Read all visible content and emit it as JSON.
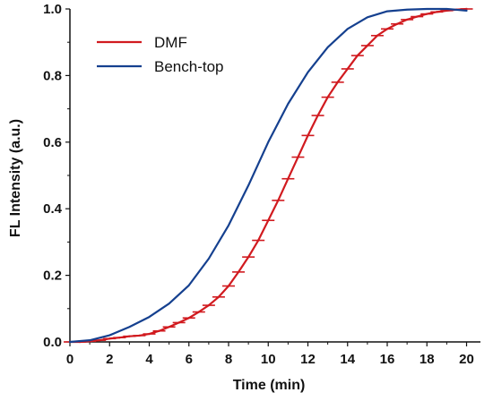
{
  "chart_data": {
    "type": "line",
    "title": "",
    "xlabel": "Time (min)",
    "ylabel": "FL Intensity (a.u.)",
    "xlim": [
      0,
      20.7
    ],
    "ylim": [
      0,
      1.0
    ],
    "xticks": [
      0,
      2,
      4,
      6,
      8,
      10,
      12,
      14,
      16,
      18,
      20
    ],
    "yticks": [
      0.0,
      0.2,
      0.4,
      0.6,
      0.8,
      1.0
    ],
    "xtick_labels": [
      "0",
      "2",
      "4",
      "6",
      "8",
      "10",
      "12",
      "14",
      "16",
      "18",
      "20"
    ],
    "ytick_labels": [
      "0.0",
      "0.2",
      "0.4",
      "0.6",
      "0.8",
      "1.0"
    ],
    "grid": false,
    "legend_position": "top-left",
    "series": [
      {
        "name": "DMF",
        "color": "#d11a1f",
        "error_bars": true,
        "x": [
          0,
          0.5,
          1,
          1.5,
          2,
          2.5,
          3,
          3.5,
          4,
          4.5,
          5,
          5.5,
          6,
          6.5,
          7,
          7.5,
          8,
          8.5,
          9,
          9.5,
          10,
          10.5,
          11,
          11.5,
          12,
          12.5,
          13,
          13.5,
          14,
          14.5,
          15,
          15.5,
          16,
          16.5,
          17,
          17.5,
          18,
          18.5,
          19,
          19.5,
          20
        ],
        "y": [
          0.0,
          0.0,
          0.002,
          0.005,
          0.01,
          0.013,
          0.017,
          0.019,
          0.024,
          0.033,
          0.045,
          0.058,
          0.072,
          0.09,
          0.11,
          0.135,
          0.168,
          0.21,
          0.255,
          0.305,
          0.365,
          0.425,
          0.49,
          0.555,
          0.62,
          0.68,
          0.735,
          0.78,
          0.82,
          0.86,
          0.89,
          0.92,
          0.94,
          0.955,
          0.968,
          0.977,
          0.985,
          0.991,
          0.995,
          0.998,
          1.0
        ],
        "error": [
          0.003,
          0.003,
          0.003,
          0.003,
          0.003,
          0.003,
          0.003,
          0.003,
          0.003,
          0.003,
          0.003,
          0.003,
          0.003,
          0.003,
          0.003,
          0.003,
          0.003,
          0.003,
          0.003,
          0.003,
          0.003,
          0.003,
          0.003,
          0.003,
          0.003,
          0.003,
          0.003,
          0.003,
          0.003,
          0.003,
          0.003,
          0.003,
          0.003,
          0.003,
          0.003,
          0.003,
          0.003,
          0.003,
          0.003,
          0.003,
          0.003
        ]
      },
      {
        "name": "Bench-top",
        "color": "#15408f",
        "error_bars": false,
        "x": [
          0,
          1,
          2,
          3,
          4,
          5,
          6,
          7,
          8,
          9,
          10,
          11,
          12,
          13,
          14,
          15,
          16,
          17,
          18,
          19,
          20
        ],
        "y": [
          0.0,
          0.005,
          0.02,
          0.045,
          0.075,
          0.115,
          0.17,
          0.25,
          0.35,
          0.47,
          0.6,
          0.715,
          0.81,
          0.885,
          0.94,
          0.975,
          0.993,
          0.998,
          1.0,
          1.0,
          0.995
        ]
      }
    ]
  }
}
